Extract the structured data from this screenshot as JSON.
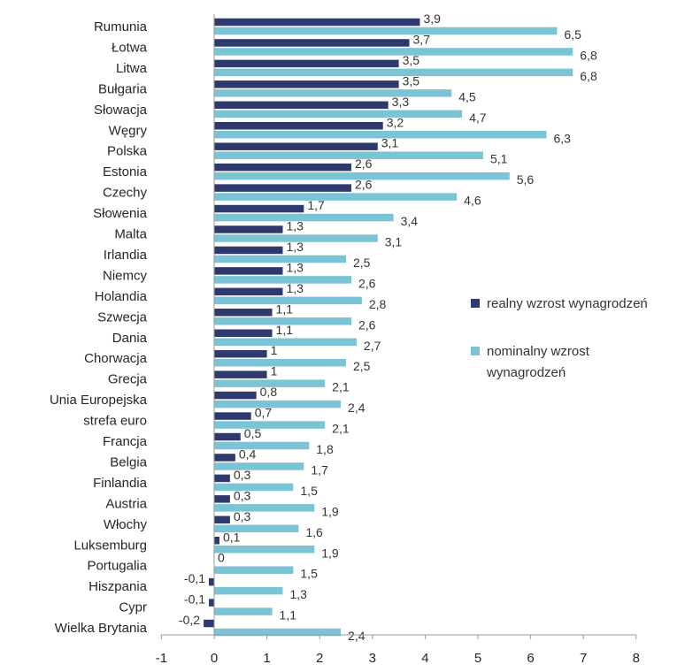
{
  "chart_data": {
    "type": "bar",
    "orientation": "horizontal",
    "categories": [
      "Rumunia",
      "Łotwa",
      "Litwa",
      "Bułgaria",
      "Słowacja",
      "Węgry",
      "Polska",
      "Estonia",
      "Czechy",
      "Słowenia",
      "Malta",
      "Irlandia",
      "Niemcy",
      "Holandia",
      "Szwecja",
      "Dania",
      "Chorwacja",
      "Grecja",
      "Unia Europejska",
      "strefa euro",
      "Francja",
      "Belgia",
      "Finlandia",
      "Austria",
      "Włochy",
      "Luksemburg",
      "Portugalia",
      "Hiszpania",
      "Cypr",
      "Wielka Brytania"
    ],
    "series": [
      {
        "name": "realny wzrost wynagrodzeń",
        "color": "#2e3a6e",
        "values": [
          3.9,
          3.7,
          3.5,
          3.5,
          3.3,
          3.2,
          3.1,
          2.6,
          2.6,
          1.7,
          1.3,
          1.3,
          1.3,
          1.3,
          1.1,
          1.1,
          1,
          1,
          0.8,
          0.7,
          0.5,
          0.4,
          0.3,
          0.3,
          0.3,
          0.1,
          0,
          -0.1,
          -0.1,
          -0.2
        ],
        "labels": [
          "3,9",
          "3,7",
          "3,5",
          "3,5",
          "3,3",
          "3,2",
          "3,1",
          "2,6",
          "2,6",
          "1,7",
          "1,3",
          "1,3",
          "1,3",
          "1,3",
          "1,1",
          "1,1",
          "1",
          "1",
          "0,8",
          "0,7",
          "0,5",
          "0,4",
          "0,3",
          "0,3",
          "0,3",
          "0,1",
          "0",
          "-0,1",
          "-0,1",
          "-0,2"
        ]
      },
      {
        "name": "nominalny wzrost wynagrodzeń",
        "color": "#7ac4d6",
        "values": [
          6.5,
          6.8,
          6.8,
          4.5,
          4.7,
          6.3,
          5.1,
          5.6,
          4.6,
          3.4,
          3.1,
          2.5,
          2.6,
          2.8,
          2.6,
          2.7,
          2.5,
          2.1,
          2.4,
          2.1,
          1.8,
          1.7,
          1.5,
          1.9,
          1.6,
          1.9,
          1.5,
          1.3,
          1.1,
          2.4
        ],
        "labels": [
          "6,5",
          "6,8",
          "6,8",
          "4,5",
          "4,7",
          "6,3",
          "5,1",
          "5,6",
          "4,6",
          "3,4",
          "3,1",
          "2,5",
          "2,6",
          "2,8",
          "2,6",
          "2,7",
          "2,5",
          "2,1",
          "2,4",
          "2,1",
          "1,8",
          "1,7",
          "1,5",
          "1,9",
          "1,6",
          "1,9",
          "1,5",
          "1,3",
          "1,1",
          "2,4"
        ]
      }
    ],
    "xlim": [
      -1,
      8
    ],
    "xticks": [
      -1,
      0,
      1,
      2,
      3,
      4,
      5,
      6,
      7,
      8
    ],
    "xtick_labels": [
      "-1",
      "0",
      "1",
      "2",
      "3",
      "4",
      "5",
      "6",
      "7",
      "8"
    ],
    "grid": false,
    "legend": {
      "position": "right",
      "entries": [
        {
          "lines": [
            "realny wzrost wynagrodzeń"
          ]
        },
        {
          "lines": [
            "nominalny wzrost",
            "wynagrodzeń"
          ]
        }
      ]
    }
  }
}
